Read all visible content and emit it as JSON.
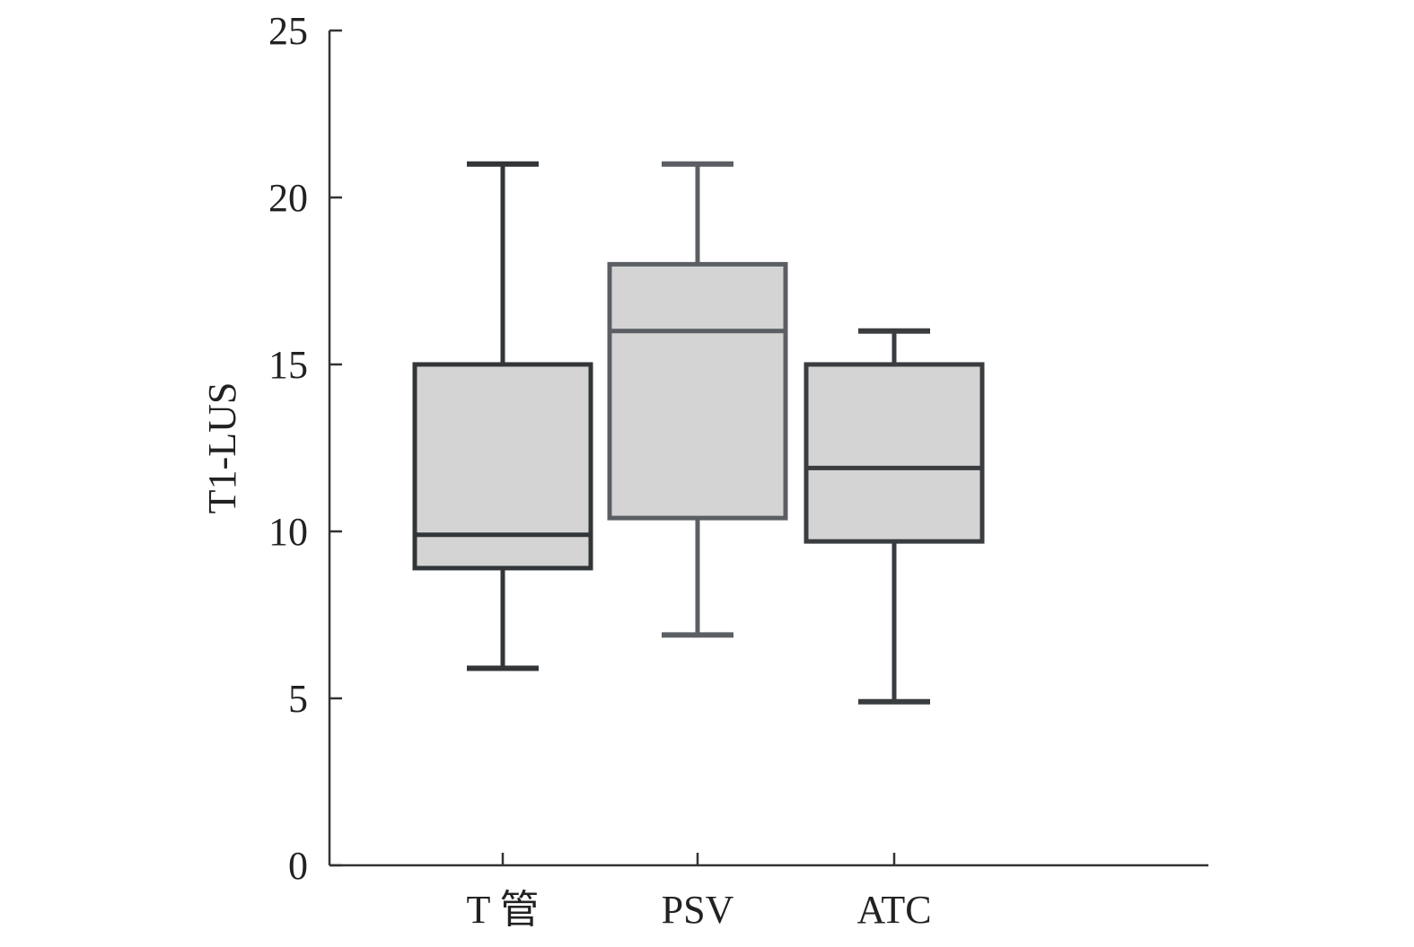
{
  "chart_data": {
    "type": "box",
    "title": "",
    "xlabel": "",
    "ylabel": "T1-LUS",
    "ylim": [
      0,
      25
    ],
    "yticks": [
      0,
      5,
      10,
      15,
      20,
      25
    ],
    "grid": false,
    "categories": [
      "T 管",
      "PSV",
      "ATC"
    ],
    "series": [
      {
        "min": 5.9,
        "q1": 8.9,
        "median": 9.9,
        "q3": 15.0,
        "max": 21.0,
        "stroke": "#333639"
      },
      {
        "min": 6.9,
        "q1": 10.4,
        "median": 16.0,
        "q3": 18.0,
        "max": 21.0,
        "stroke": "#5b5f64"
      },
      {
        "min": 4.9,
        "q1": 9.7,
        "median": 11.9,
        "q3": 15.0,
        "max": 16.0,
        "stroke": "#3a3d40"
      }
    ],
    "colors": {
      "box_fill": "#d4d4d4",
      "axis": "#333333"
    }
  }
}
